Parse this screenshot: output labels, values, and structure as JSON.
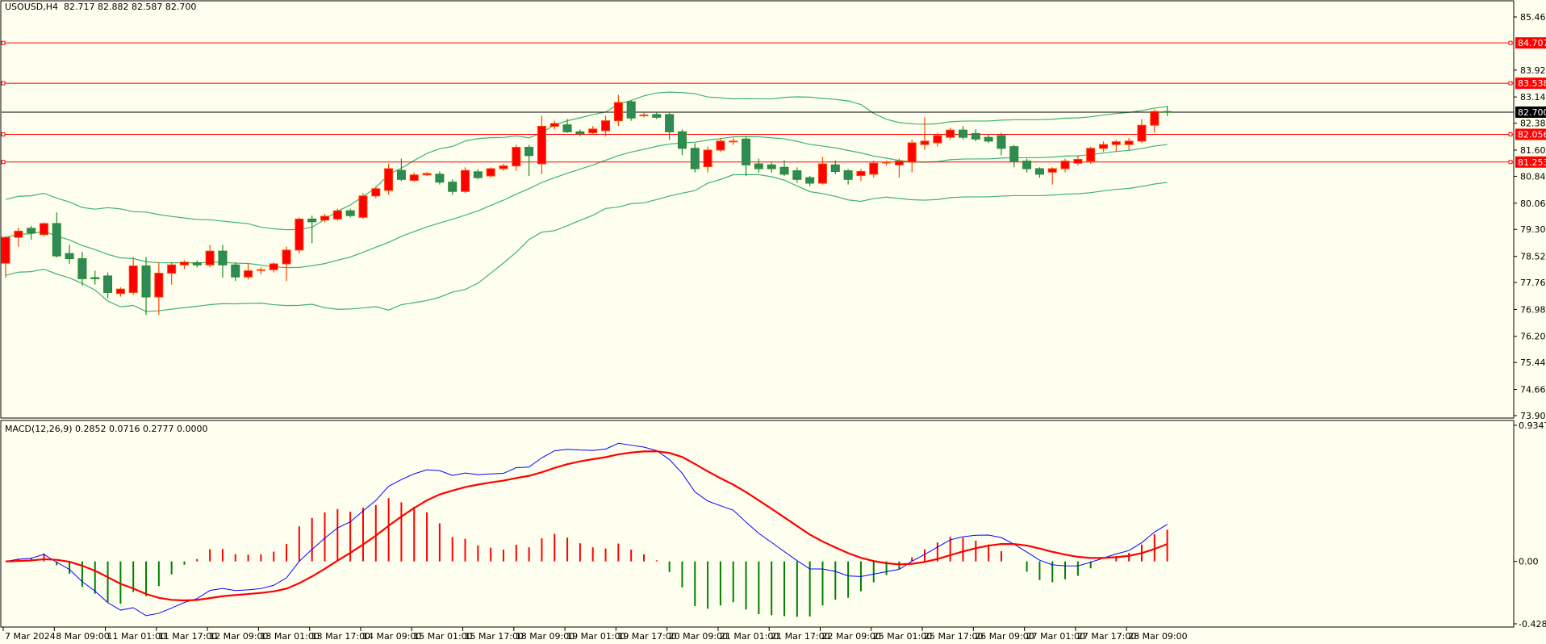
{
  "header": {
    "symbol": "USOUSD,H4",
    "ohlc_text": "82.717 82.882 82.587 82.700"
  },
  "macd_header": {
    "label": "MACD(12,26,9)",
    "values_text": "0.2852 0.0716 0.2777 0.0000"
  },
  "colors": {
    "background": "#fffff0",
    "bull_candle": "#ff0000",
    "bull_border": "#ff4500",
    "bear_candle": "#2e8b57",
    "bear_border": "#228b22",
    "bands": "#3cb371",
    "macd_line": "#0000ff",
    "signal_line": "#ff0000",
    "level_line": "#ff0000",
    "bid_line": "#000000"
  },
  "chart_data": [
    {
      "type": "candlestick",
      "title": "USOUSD,H4",
      "ylim": [
        73.9,
        85.46
      ],
      "price_ticks": [
        "85.460",
        "83.920",
        "83.140",
        "82.380",
        "81.600",
        "80.840",
        "80.060",
        "79.300",
        "78.520",
        "77.760",
        "76.980",
        "76.200",
        "75.440",
        "74.660",
        "73.900"
      ],
      "levels": [
        {
          "value": 84.707,
          "label": "84.707"
        },
        {
          "value": 83.538,
          "label": "83.538"
        },
        {
          "value": 82.056,
          "label": "82.056"
        },
        {
          "value": 81.253,
          "label": "81.253"
        }
      ],
      "bid": {
        "value": 82.7,
        "label": "82.700"
      },
      "indicators": [
        "Bollinger Bands(20,2)"
      ],
      "ohlc": [
        [
          78.32,
          79.1,
          77.9,
          79.07
        ],
        [
          79.07,
          79.35,
          78.8,
          79.25
        ],
        [
          79.33,
          79.4,
          79.0,
          79.2
        ],
        [
          79.15,
          79.5,
          79.1,
          79.47
        ],
        [
          79.47,
          79.79,
          78.48,
          78.53
        ],
        [
          78.6,
          78.85,
          78.3,
          78.45
        ],
        [
          78.45,
          78.65,
          77.67,
          77.87
        ],
        [
          77.9,
          78.1,
          77.7,
          77.87
        ],
        [
          77.95,
          78.05,
          77.3,
          77.47
        ],
        [
          77.44,
          77.62,
          77.35,
          77.57
        ],
        [
          77.47,
          78.5,
          77.4,
          78.24
        ],
        [
          78.24,
          78.5,
          76.82,
          77.34
        ],
        [
          77.34,
          78.35,
          76.82,
          78.03
        ],
        [
          78.03,
          78.35,
          77.7,
          78.27
        ],
        [
          78.27,
          78.4,
          78.15,
          78.35
        ],
        [
          78.33,
          78.4,
          78.2,
          78.27
        ],
        [
          78.27,
          78.85,
          78.2,
          78.67
        ],
        [
          78.67,
          78.85,
          77.9,
          78.27
        ],
        [
          78.27,
          78.35,
          77.8,
          77.92
        ],
        [
          77.92,
          78.3,
          77.85,
          78.1
        ],
        [
          78.13,
          78.2,
          78.0,
          78.13
        ],
        [
          78.13,
          78.35,
          78.05,
          78.3
        ],
        [
          78.3,
          78.8,
          77.8,
          78.7
        ],
        [
          78.7,
          79.65,
          78.6,
          79.6
        ],
        [
          79.6,
          79.7,
          78.9,
          79.52
        ],
        [
          79.57,
          79.75,
          79.5,
          79.68
        ],
        [
          79.6,
          79.9,
          79.55,
          79.84
        ],
        [
          79.84,
          79.9,
          79.65,
          79.7
        ],
        [
          79.65,
          80.35,
          79.6,
          80.27
        ],
        [
          80.27,
          80.55,
          80.2,
          80.48
        ],
        [
          80.43,
          81.2,
          80.3,
          81.06
        ],
        [
          81.01,
          81.35,
          80.7,
          80.75
        ],
        [
          80.72,
          80.95,
          80.68,
          80.88
        ],
        [
          80.88,
          80.96,
          80.85,
          80.92
        ],
        [
          80.9,
          80.98,
          80.6,
          80.67
        ],
        [
          80.67,
          80.75,
          80.3,
          80.4
        ],
        [
          80.4,
          81.1,
          80.35,
          81.01
        ],
        [
          80.97,
          81.05,
          80.75,
          80.8
        ],
        [
          80.85,
          81.1,
          80.8,
          81.06
        ],
        [
          81.06,
          81.2,
          81.0,
          81.14
        ],
        [
          81.14,
          81.75,
          81.0,
          81.68
        ],
        [
          81.68,
          81.75,
          80.85,
          81.44
        ],
        [
          81.2,
          82.6,
          80.9,
          82.29
        ],
        [
          82.29,
          82.45,
          82.2,
          82.37
        ],
        [
          82.33,
          82.5,
          82.1,
          82.13
        ],
        [
          82.13,
          82.2,
          82.0,
          82.08
        ],
        [
          82.1,
          82.3,
          82.05,
          82.21
        ],
        [
          82.16,
          82.6,
          82.0,
          82.45
        ],
        [
          82.45,
          83.2,
          82.3,
          82.98
        ],
        [
          83.0,
          83.05,
          82.45,
          82.53
        ],
        [
          82.6,
          82.68,
          82.55,
          82.62
        ],
        [
          82.63,
          82.68,
          82.5,
          82.55
        ],
        [
          82.63,
          82.7,
          81.9,
          82.13
        ],
        [
          82.13,
          82.2,
          81.45,
          81.65
        ],
        [
          81.65,
          81.8,
          80.95,
          81.06
        ],
        [
          81.12,
          81.7,
          80.95,
          81.6
        ],
        [
          81.6,
          81.95,
          81.55,
          81.86
        ],
        [
          81.86,
          81.95,
          81.75,
          81.86
        ],
        [
          81.92,
          82.0,
          80.85,
          81.17
        ],
        [
          81.2,
          81.35,
          80.95,
          81.06
        ],
        [
          81.17,
          81.25,
          80.95,
          81.06
        ],
        [
          81.1,
          81.3,
          80.85,
          80.9
        ],
        [
          81.0,
          81.1,
          80.65,
          80.75
        ],
        [
          80.8,
          80.85,
          80.55,
          80.64
        ],
        [
          80.64,
          81.4,
          80.6,
          81.2
        ],
        [
          81.17,
          81.3,
          80.9,
          80.98
        ],
        [
          81.0,
          81.05,
          80.6,
          80.75
        ],
        [
          80.86,
          81.05,
          80.7,
          80.98
        ],
        [
          80.9,
          81.3,
          80.8,
          81.22
        ],
        [
          81.25,
          81.3,
          81.15,
          81.25
        ],
        [
          81.17,
          81.35,
          80.8,
          81.28
        ],
        [
          81.25,
          81.9,
          80.95,
          81.81
        ],
        [
          81.76,
          82.55,
          81.6,
          81.86
        ],
        [
          81.81,
          82.1,
          81.7,
          82.02
        ],
        [
          81.97,
          82.25,
          81.9,
          82.18
        ],
        [
          82.18,
          82.3,
          81.9,
          81.97
        ],
        [
          82.08,
          82.2,
          81.85,
          81.92
        ],
        [
          81.97,
          82.05,
          81.8,
          81.86
        ],
        [
          82.02,
          82.1,
          81.45,
          81.65
        ],
        [
          81.7,
          81.75,
          81.1,
          81.28
        ],
        [
          81.28,
          81.35,
          80.95,
          81.06
        ],
        [
          81.06,
          81.1,
          80.8,
          80.9
        ],
        [
          80.96,
          81.1,
          80.6,
          81.06
        ],
        [
          81.06,
          81.35,
          80.95,
          81.28
        ],
        [
          81.22,
          81.45,
          81.15,
          81.33
        ],
        [
          81.28,
          81.7,
          81.2,
          81.65
        ],
        [
          81.65,
          81.85,
          81.55,
          81.76
        ],
        [
          81.76,
          81.9,
          81.55,
          81.84
        ],
        [
          81.76,
          81.95,
          81.6,
          81.86
        ],
        [
          81.86,
          82.5,
          81.8,
          82.32
        ],
        [
          82.32,
          82.78,
          82.1,
          82.72
        ],
        [
          82.717,
          82.882,
          82.587,
          82.7
        ]
      ]
    },
    {
      "type": "line",
      "title": "MACD(12,26,9)",
      "ylim": [
        -0.4288,
        0.9347
      ],
      "y_ticks": [
        "0.9347",
        "0.00",
        "-0.4288"
      ],
      "series": [
        "MACD",
        "Signal",
        "Histogram"
      ]
    }
  ],
  "x_axis": {
    "labels": [
      "7 Mar 2024",
      "8 Mar 09:00",
      "11 Mar 01:00",
      "11 Mar 17:00",
      "12 Mar 09:00",
      "13 Mar 01:00",
      "13 Mar 17:00",
      "14 Mar 09:00",
      "15 Mar 01:00",
      "15 Mar 17:00",
      "18 Mar 09:00",
      "19 Mar 01:00",
      "19 Mar 17:00",
      "20 Mar 09:00",
      "21 Mar 01:00",
      "21 Mar 17:00",
      "22 Mar 09:00",
      "25 Mar 01:00",
      "25 Mar 17:00",
      "26 Mar 09:00",
      "27 Mar 01:00",
      "27 Mar 17:00",
      "28 Mar 09:00"
    ],
    "bars_per_label": 4
  }
}
